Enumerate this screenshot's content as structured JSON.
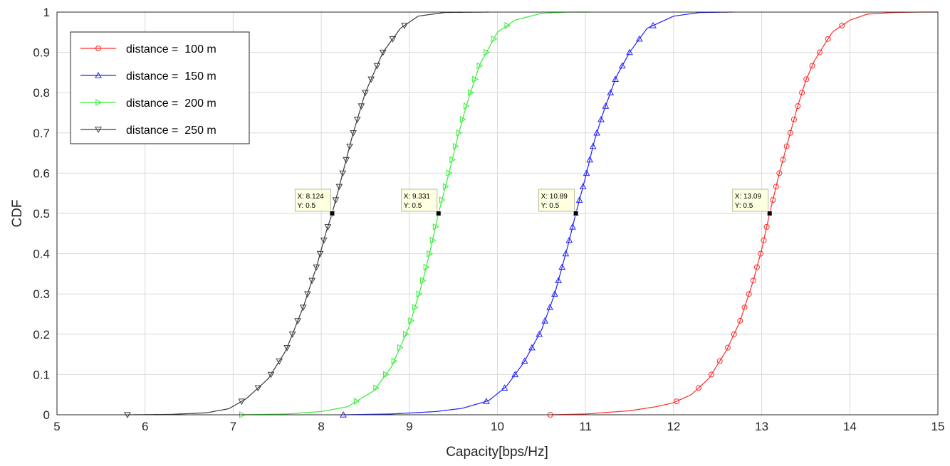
{
  "chart_data": {
    "type": "line",
    "xlabel": "Capacity[bps/Hz]",
    "ylabel": "CDF",
    "xlim": [
      5,
      15
    ],
    "ylim": [
      0,
      1
    ],
    "xticks": [
      "5",
      "6",
      "7",
      "8",
      "9",
      "10",
      "11",
      "12",
      "13",
      "14",
      "15"
    ],
    "yticks": [
      "0",
      "0.1",
      "0.2",
      "0.3",
      "0.4",
      "0.5",
      "0.6",
      "0.7",
      "0.8",
      "0.9",
      "1"
    ],
    "grid": true,
    "legend_position": "top-left",
    "series": [
      {
        "name": "distance =  100 m",
        "color": "#ff2a2a",
        "marker": "circle",
        "x": [
          10.6,
          11.0,
          11.5,
          11.8,
          12.0,
          12.2,
          12.4,
          12.6,
          12.75,
          12.9,
          13.0,
          13.09,
          13.2,
          13.3,
          13.4,
          13.5,
          13.6,
          13.8,
          14.0,
          14.2,
          14.5,
          14.8,
          15.0
        ],
        "y": [
          0,
          0.002,
          0.01,
          0.02,
          0.03,
          0.05,
          0.09,
          0.16,
          0.23,
          0.33,
          0.41,
          0.5,
          0.6,
          0.68,
          0.76,
          0.83,
          0.88,
          0.95,
          0.98,
          0.995,
          0.999,
          1,
          1
        ]
      },
      {
        "name": "distance =  150 m",
        "color": "#2020ff",
        "marker": "triangle-up",
        "x": [
          8.25,
          8.8,
          9.3,
          9.6,
          9.9,
          10.1,
          10.3,
          10.5,
          10.65,
          10.8,
          10.89,
          11.0,
          11.1,
          11.2,
          11.35,
          11.5,
          11.7,
          12.0,
          12.3,
          12.67
        ],
        "y": [
          0,
          0.002,
          0.008,
          0.016,
          0.035,
          0.07,
          0.13,
          0.21,
          0.3,
          0.42,
          0.5,
          0.59,
          0.68,
          0.75,
          0.84,
          0.9,
          0.96,
          0.99,
          0.999,
          1
        ]
      },
      {
        "name": "distance =  200 m",
        "color": "#33ee33",
        "marker": "triangle-right",
        "x": [
          7.1,
          7.6,
          8.0,
          8.3,
          8.6,
          8.8,
          9.0,
          9.15,
          9.25,
          9.331,
          9.45,
          9.55,
          9.65,
          9.8,
          10.0,
          10.2,
          10.5,
          10.8,
          11.05
        ],
        "y": [
          0,
          0.002,
          0.008,
          0.02,
          0.06,
          0.12,
          0.22,
          0.33,
          0.42,
          0.5,
          0.6,
          0.69,
          0.77,
          0.87,
          0.95,
          0.98,
          0.997,
          1,
          1
        ]
      },
      {
        "name": "distance =  250 m",
        "color": "#3a3a3a",
        "marker": "triangle-down",
        "x": [
          5.8,
          6.3,
          6.7,
          6.95,
          7.15,
          7.4,
          7.6,
          7.8,
          7.95,
          8.05,
          8.124,
          8.22,
          8.35,
          8.5,
          8.7,
          8.9,
          9.1,
          9.4,
          9.9
        ],
        "y": [
          0,
          0.001,
          0.005,
          0.015,
          0.04,
          0.09,
          0.16,
          0.27,
          0.37,
          0.45,
          0.5,
          0.58,
          0.69,
          0.8,
          0.9,
          0.96,
          0.99,
          0.999,
          1
        ]
      }
    ],
    "datatips": [
      {
        "x_label": "X: 8.124",
        "y_label": "Y: 0.5",
        "x": 8.124,
        "y": 0.5
      },
      {
        "x_label": "X: 9.331",
        "y_label": "Y: 0.5",
        "x": 9.331,
        "y": 0.5
      },
      {
        "x_label": "X: 10.89",
        "y_label": "Y: 0.5",
        "x": 10.89,
        "y": 0.5
      },
      {
        "x_label": "X: 13.09",
        "y_label": "Y: 0.5",
        "x": 13.09,
        "y": 0.5
      }
    ]
  }
}
